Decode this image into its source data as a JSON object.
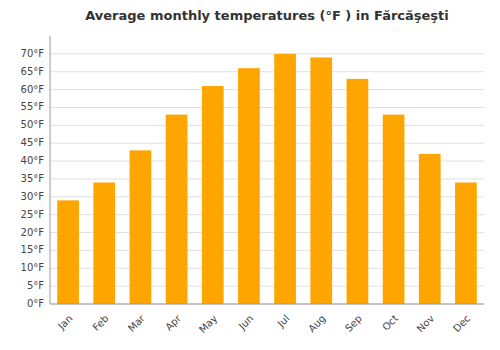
{
  "chart_data": {
    "type": "bar",
    "title": "Average monthly temperatures (°F ) in Fărcăşeşti",
    "categories": [
      "Jan",
      "Feb",
      "Mar",
      "Apr",
      "May",
      "Jun",
      "Jul",
      "Aug",
      "Sep",
      "Oct",
      "Nov",
      "Dec"
    ],
    "values": [
      29,
      34,
      43,
      53,
      61,
      66,
      70,
      69,
      63,
      53,
      42,
      34
    ],
    "color": "#FFA500",
    "ylim": [
      0,
      75
    ],
    "yticks": [
      {
        "value": 0,
        "label": "0°F"
      },
      {
        "value": 5,
        "label": "5°F"
      },
      {
        "value": 10,
        "label": "10°F"
      },
      {
        "value": 15,
        "label": "15°F"
      },
      {
        "value": 20,
        "label": "20°F"
      },
      {
        "value": 25,
        "label": "25°F"
      },
      {
        "value": 30,
        "label": "30°F"
      },
      {
        "value": 35,
        "label": "35°F"
      },
      {
        "value": 40,
        "label": "40°F"
      },
      {
        "value": 45,
        "label": "45°F"
      },
      {
        "value": 50,
        "label": "50°F"
      },
      {
        "value": 55,
        "label": "55°F"
      },
      {
        "value": 60,
        "label": "60°F"
      },
      {
        "value": 65,
        "label": "65°F"
      },
      {
        "value": 70,
        "label": "70°F"
      }
    ],
    "grid": true
  }
}
